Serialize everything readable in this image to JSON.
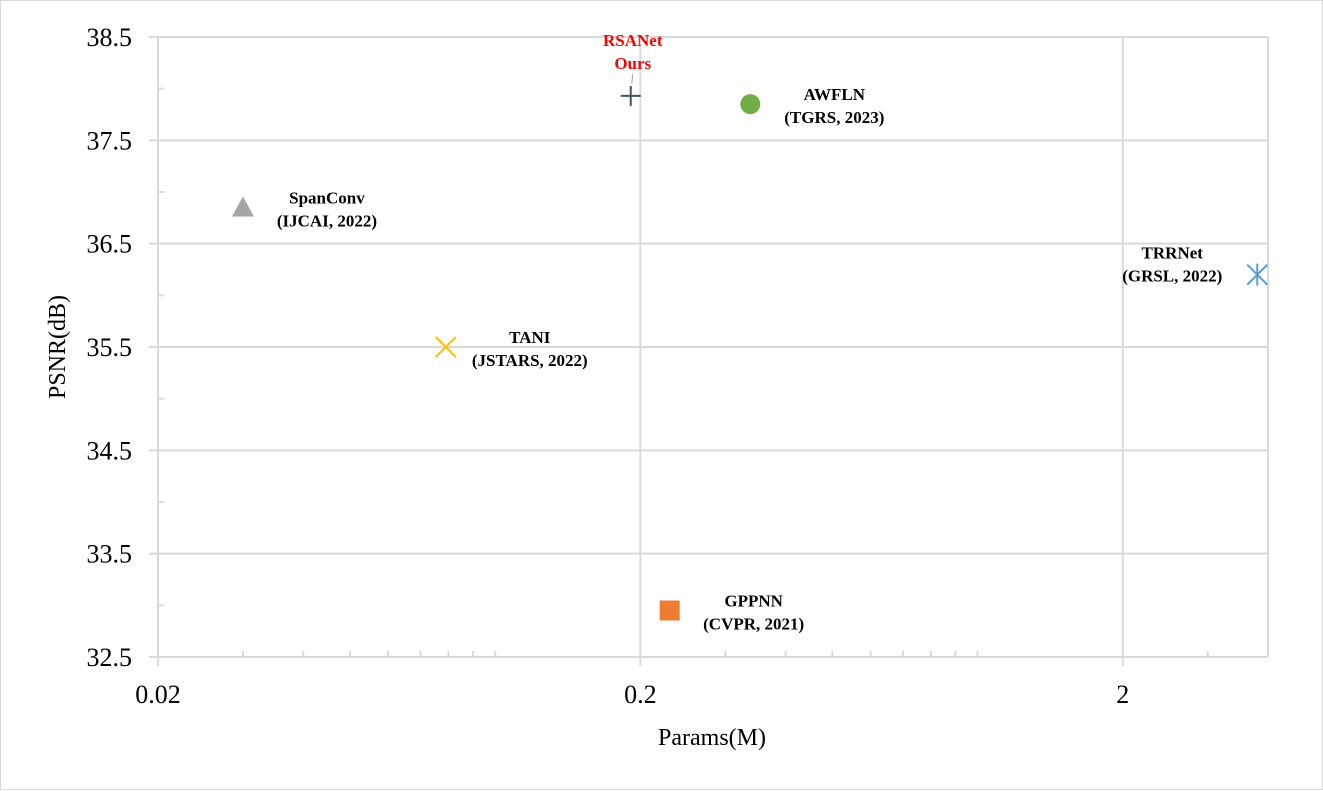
{
  "chart_data": {
    "type": "scatter",
    "title": "",
    "xlabel": "Params(M)",
    "ylabel": "PSNR(dB)",
    "x_scale": "log",
    "xlim": [
      0.02,
      4.0
    ],
    "ylim": [
      32.5,
      38.5
    ],
    "x_ticks": [
      {
        "value": 0.02,
        "label": "0.02"
      },
      {
        "value": 0.2,
        "label": "0.2"
      },
      {
        "value": 2,
        "label": "2"
      }
    ],
    "y_ticks": [
      {
        "value": 38.5,
        "label": "38.5"
      },
      {
        "value": 37.5,
        "label": "37.5"
      },
      {
        "value": 36.5,
        "label": "36.5"
      },
      {
        "value": 35.5,
        "label": "35.5"
      },
      {
        "value": 34.5,
        "label": "34.5"
      },
      {
        "value": 33.5,
        "label": "33.5"
      },
      {
        "value": 32.5,
        "label": "32.5"
      }
    ],
    "grid": true,
    "legend": "none",
    "series": [
      {
        "x": 0.191,
        "y": 37.93,
        "marker": "plus",
        "color": "#44546a",
        "label_lines": [
          "RSANet",
          "Ours"
        ],
        "label_color": "#ff0000",
        "label_anchor": "above"
      },
      {
        "x": 0.338,
        "y": 37.85,
        "marker": "circle",
        "color": "#70ad47",
        "label_lines": [
          "AWFLN",
          "(TGRS, 2023)"
        ],
        "label_color": "#000000",
        "label_anchor": "right"
      },
      {
        "x": 0.03,
        "y": 36.85,
        "marker": "triangle",
        "color": "#a5a5a5",
        "label_lines": [
          "SpanConv",
          "(IJCAI, 2022)"
        ],
        "label_color": "#000000",
        "label_anchor": "right"
      },
      {
        "x": 0.079,
        "y": 35.5,
        "marker": "x",
        "color": "#ffc000",
        "label_lines": [
          "TANI",
          "(JSTARS, 2022)"
        ],
        "label_color": "#000000",
        "label_anchor": "right"
      },
      {
        "x": 3.8,
        "y": 36.2,
        "marker": "asterisk",
        "color": "#5b9bd5",
        "label_lines": [
          "TRRNet",
          "(GRSL, 2022)"
        ],
        "label_color": "#000000",
        "label_anchor": "left"
      },
      {
        "x": 0.23,
        "y": 32.95,
        "marker": "square",
        "color": "#ed7d31",
        "label_lines": [
          "GPPNN",
          "(CVPR, 2021)"
        ],
        "label_color": "#000000",
        "label_anchor": "right"
      }
    ]
  }
}
